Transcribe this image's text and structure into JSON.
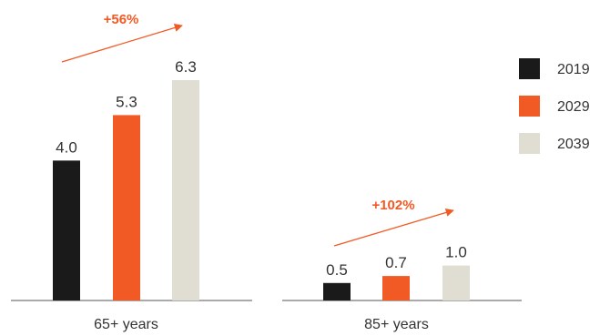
{
  "chart_data": {
    "type": "bar",
    "categories": [
      "65+ years",
      "85+ years"
    ],
    "series": [
      {
        "name": "2019",
        "values": [
          4.0,
          0.5
        ],
        "labels": [
          "4.0",
          "0.5"
        ],
        "color": "#1a1a1a"
      },
      {
        "name": "2029",
        "values": [
          5.3,
          0.7
        ],
        "labels": [
          "5.3",
          "0.7"
        ],
        "color": "#f15a24"
      },
      {
        "name": "2039",
        "values": [
          6.3,
          1.0
        ],
        "labels": [
          "6.3",
          "1.0"
        ],
        "color": "#e0ddd3"
      }
    ],
    "annotations": [
      "+56%",
      "+102%"
    ],
    "ylim": [
      0,
      6.3
    ],
    "legend_position": "right",
    "grid": false,
    "accent_color": "#f15a24",
    "axis_color": "#555555"
  }
}
